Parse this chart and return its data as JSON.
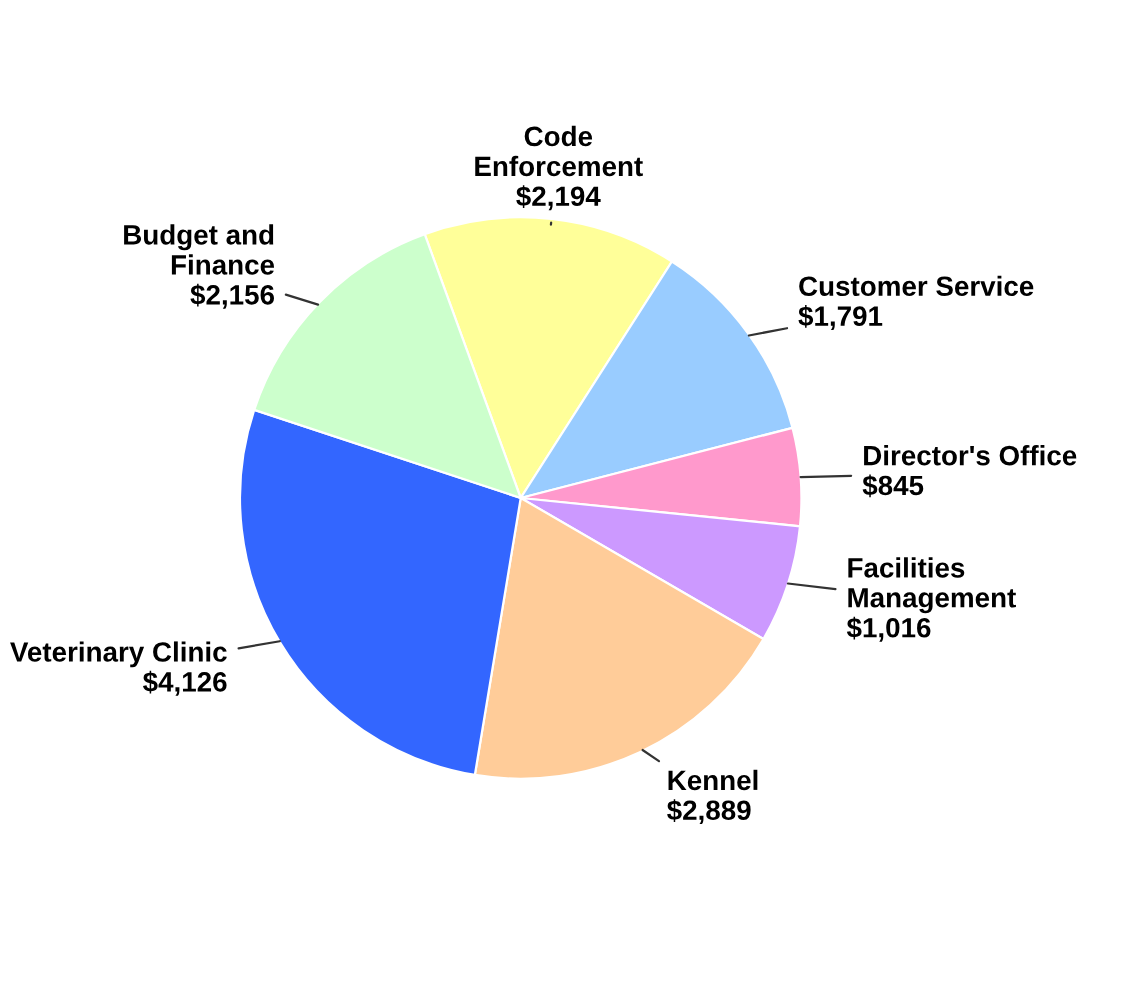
{
  "chart_data": {
    "type": "pie",
    "categories": [
      "Code\nEnforcement",
      "Customer Service",
      "Director's Office",
      "Facilities\nManagement",
      "Kennel",
      "Veterinary Clinic",
      "Budget and\nFinance"
    ],
    "values": [
      2194,
      1791,
      845,
      1016,
      2889,
      4126,
      2156
    ],
    "value_labels": [
      "$2,194",
      "$1,791",
      "$845",
      "$1,016",
      "$2,889",
      "$4,126",
      "$2,156"
    ],
    "colors": [
      "#ffff99",
      "#99ccff",
      "#ff99cc",
      "#cc99ff",
      "#ffcc99",
      "#3366ff",
      "#ccffcc"
    ],
    "legend": false
  }
}
